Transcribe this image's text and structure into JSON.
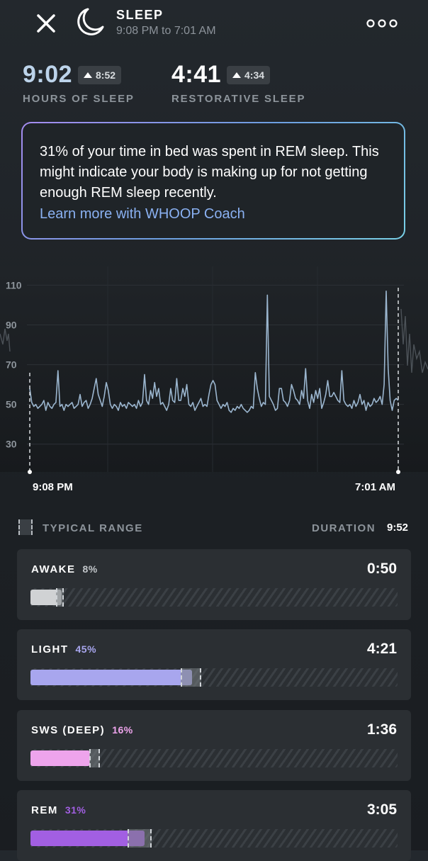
{
  "header": {
    "title": "SLEEP",
    "time_range": "9:08 PM to 7:01 AM"
  },
  "stats": {
    "hours": {
      "value": "9:02",
      "delta": "8:52",
      "label": "HOURS OF SLEEP"
    },
    "restorative": {
      "value": "4:41",
      "delta": "4:34",
      "label": "RESTORATIVE SLEEP"
    }
  },
  "coach": {
    "message": "31% of your time in bed was spent in REM sleep. This might indicate your body is making up for not getting enough REM sleep recently.",
    "link": "Learn more with WHOOP Coach"
  },
  "chart_data": {
    "type": "line",
    "title": "",
    "xlabel": "",
    "ylabel": "",
    "yticks": [
      110,
      90,
      70,
      50,
      30
    ],
    "ylim": [
      16,
      113
    ],
    "x_start_label": "9:08 PM",
    "x_end_label": "7:01 AM",
    "grid": true,
    "series": [
      {
        "values": [
          58,
          51,
          49,
          50,
          48,
          49,
          50,
          52,
          47,
          51,
          49,
          48,
          50,
          51,
          67,
          49,
          50,
          47,
          50,
          49,
          50,
          51,
          48,
          49,
          50,
          55,
          49,
          51,
          52,
          48,
          50,
          53,
          58,
          63,
          55,
          52,
          49,
          54,
          61,
          57,
          50,
          48,
          50,
          49,
          47,
          51,
          49,
          50,
          48,
          51,
          50,
          49,
          50,
          48,
          52,
          49,
          51,
          65,
          52,
          50,
          57,
          53,
          61,
          54,
          58,
          50,
          51,
          49,
          47,
          50,
          58,
          52,
          51,
          63,
          52,
          52,
          58,
          54,
          60,
          50,
          49,
          51,
          47,
          49,
          51,
          53,
          49,
          50,
          49,
          55,
          60,
          62,
          60,
          52,
          50,
          48,
          50,
          49,
          51,
          47,
          46,
          48,
          47,
          49,
          48,
          50,
          48,
          47,
          46,
          47,
          49,
          48,
          66,
          58,
          53,
          49,
          51,
          50,
          105,
          54,
          52,
          50,
          47,
          48,
          58,
          58,
          52,
          51,
          49,
          52,
          60,
          57,
          53,
          52,
          50,
          57,
          53,
          68,
          52,
          48,
          55,
          51,
          57,
          53,
          58,
          48,
          51,
          55,
          62,
          54,
          54,
          56,
          54,
          52,
          51,
          67,
          52,
          50,
          49,
          50,
          48,
          52,
          49,
          51,
          55,
          50,
          52,
          47,
          51,
          49,
          50,
          53,
          51,
          52,
          54,
          50,
          60,
          107,
          68,
          52,
          47,
          52,
          53,
          52
        ]
      }
    ]
  },
  "legend": {
    "typical_range": "TYPICAL RANGE",
    "duration_label": "DURATION",
    "duration_value": "9:52"
  },
  "stages": [
    {
      "name": "AWAKE",
      "pct": "8%",
      "time": "0:50",
      "fill_fraction": 0.085,
      "typical_range": [
        0.07,
        0.09
      ],
      "color": "#d0d2d4",
      "pct_color": "#c2c6ca"
    },
    {
      "name": "LIGHT",
      "pct": "45%",
      "time": "4:21",
      "fill_fraction": 0.44,
      "typical_range": [
        0.41,
        0.465
      ],
      "color": "#a8a6ee",
      "pct_color": "#a8a6ee"
    },
    {
      "name": "SWS (DEEP)",
      "pct": "16%",
      "time": "1:36",
      "fill_fraction": 0.162,
      "typical_range": [
        0.16,
        0.19
      ],
      "color": "#eea4ec",
      "pct_color": "#eea4ec"
    },
    {
      "name": "REM",
      "pct": "31%",
      "time": "3:05",
      "fill_fraction": 0.31,
      "typical_range": [
        0.265,
        0.33
      ],
      "color": "#a25fe2",
      "pct_color": "#a25fe2"
    }
  ]
}
